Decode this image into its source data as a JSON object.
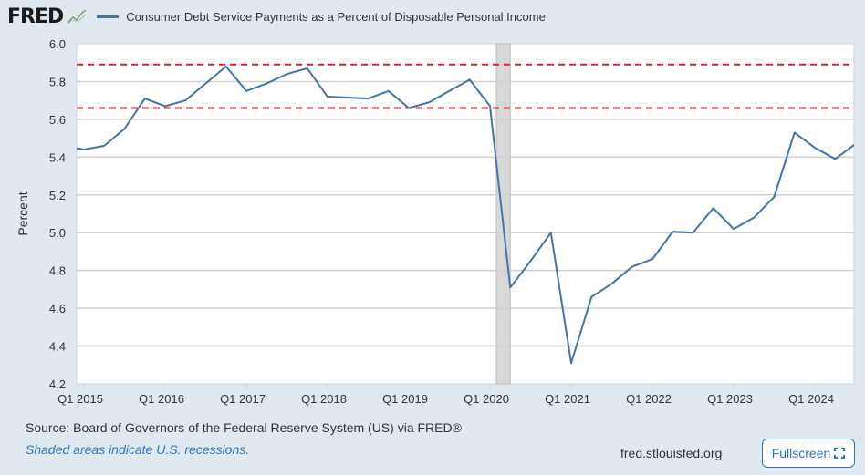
{
  "header": {
    "logo": "FRED",
    "legend_label": "Consumer Debt Service Payments as a Percent of Disposable Personal Income"
  },
  "footer": {
    "source": "Source: Board of Governors of the Federal Reserve System (US) via FRED®",
    "note": "Shaded areas indicate U.S. recessions.",
    "site": "fred.stlouisfed.org",
    "fullscreen_label": "Fullscreen"
  },
  "colors": {
    "series": "#4572a7",
    "reference": "#e0201f",
    "recession": "#d8d8d8"
  },
  "chart_data": {
    "type": "line",
    "title": "",
    "xlabel": "",
    "ylabel": "Percent",
    "ylim": [
      4.2,
      6.0
    ],
    "yticks": [
      "4.2",
      "4.4",
      "4.6",
      "4.8",
      "5.0",
      "5.2",
      "5.4",
      "5.6",
      "5.8",
      "6.0"
    ],
    "xticks": [
      "Q1 2015",
      "Q1 2016",
      "Q1 2017",
      "Q1 2018",
      "Q1 2019",
      "Q1 2020",
      "Q1 2021",
      "Q1 2022",
      "Q1 2023",
      "Q1 2024"
    ],
    "grid": true,
    "x": [
      "Q4 2014",
      "Q1 2015",
      "Q2 2015",
      "Q3 2015",
      "Q4 2015",
      "Q1 2016",
      "Q2 2016",
      "Q3 2016",
      "Q4 2016",
      "Q1 2017",
      "Q2 2017",
      "Q3 2017",
      "Q4 2017",
      "Q1 2018",
      "Q2 2018",
      "Q3 2018",
      "Q4 2018",
      "Q1 2019",
      "Q2 2019",
      "Q3 2019",
      "Q4 2019",
      "Q1 2020",
      "Q2 2020",
      "Q3 2020",
      "Q4 2020",
      "Q1 2021",
      "Q2 2021",
      "Q3 2021",
      "Q4 2021",
      "Q1 2022",
      "Q2 2022",
      "Q3 2022",
      "Q4 2022",
      "Q1 2023",
      "Q2 2023",
      "Q3 2023",
      "Q4 2023",
      "Q1 2024",
      "Q2 2024",
      "Q3 2024"
    ],
    "series": [
      {
        "values": [
          5.46,
          5.44,
          5.46,
          5.55,
          5.71,
          5.67,
          5.7,
          5.79,
          5.88,
          5.75,
          5.79,
          5.84,
          5.87,
          5.72,
          5.715,
          5.71,
          5.75,
          5.66,
          5.69,
          5.75,
          5.81,
          5.67,
          4.71,
          4.85,
          5.0,
          4.31,
          4.66,
          4.73,
          4.82,
          4.86,
          5.005,
          5.0,
          5.13,
          5.02,
          5.08,
          5.19,
          5.53,
          5.45,
          5.39,
          5.47
        ]
      }
    ],
    "reference_lines": [
      5.89,
      5.66
    ],
    "recessions": [
      {
        "start": "Feb 2020",
        "end": "Apr 2020"
      }
    ]
  }
}
